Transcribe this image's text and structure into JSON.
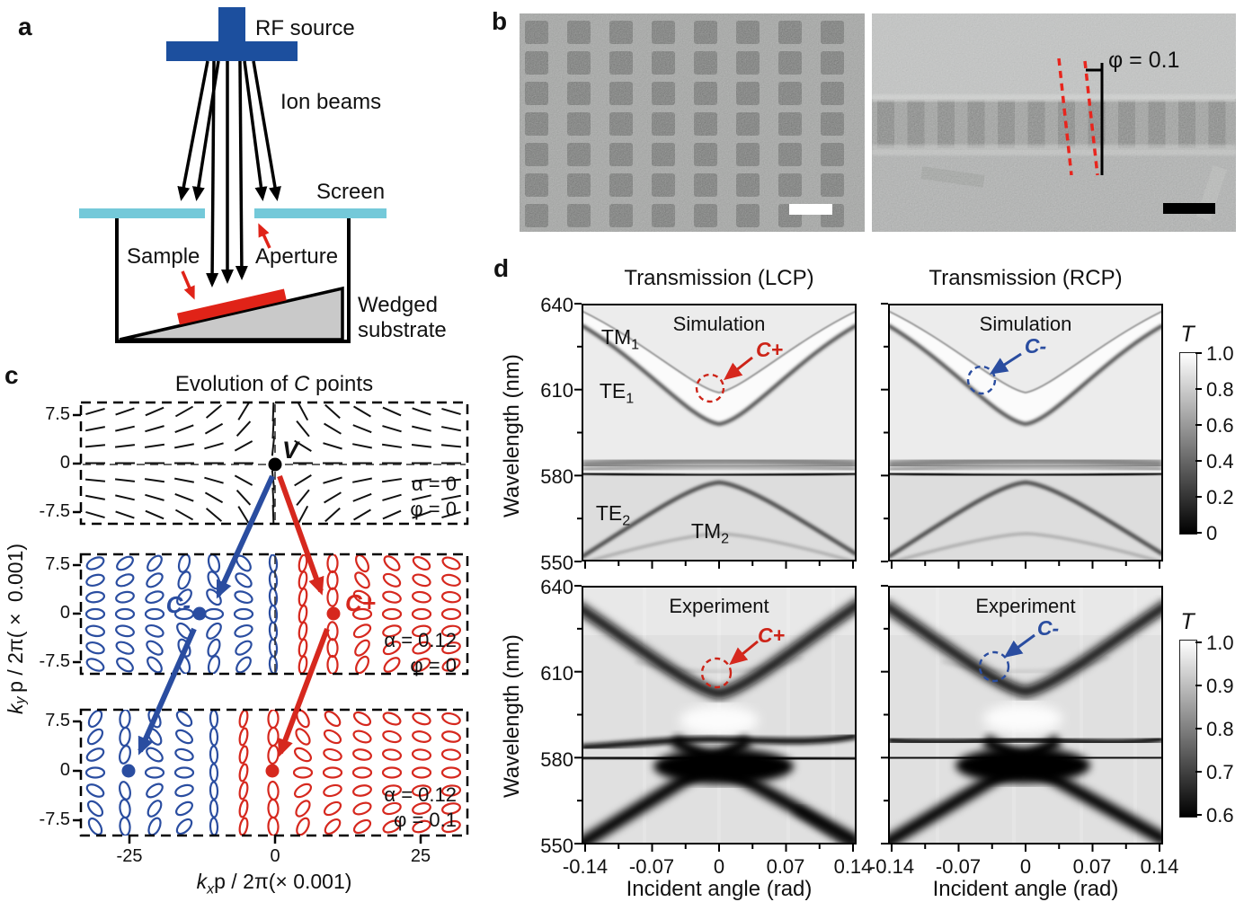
{
  "panel_a": {
    "label": "a",
    "rf_source": "RF source",
    "ion_beams": "Ion beams",
    "screen": "Screen",
    "sample": "Sample",
    "aperture": "Aperture",
    "wedged_1": "Wedged",
    "wedged_2": "substrate",
    "colors": {
      "source_blue": "#1c4f9e",
      "screen_cyan": "#74c9d9",
      "sample_red": "#e02318"
    }
  },
  "panel_b": {
    "label": "b",
    "phi_label": "φ = 0.1"
  },
  "panel_c": {
    "label": "c",
    "title": {
      "prefix": "Evolution of ",
      "italic": "C",
      "suffix": " points"
    },
    "xlabel": {
      "k": "k",
      "sub": "x",
      "rest": "p / 2π(× 0.001)"
    },
    "ylabel": {
      "k": "k",
      "sub": "y",
      "rest": "p / 2π(× 0.001)"
    },
    "y_ticks": [
      "7.5",
      "0",
      "-7.5"
    ],
    "x_ticks": [
      "-25",
      "0",
      "25"
    ],
    "subpanels": [
      {
        "alpha": "α = 0",
        "phi": "φ = 0",
        "v_label": "V"
      },
      {
        "alpha": "α = 0.12",
        "phi": "φ = 0",
        "cminus": "C-",
        "cplus": "C+"
      },
      {
        "alpha": "α = 0.12",
        "phi": "φ = 0.1"
      }
    ]
  },
  "panel_d": {
    "label": "d",
    "col_titles": [
      "Transmission (LCP)",
      "Transmission (RCP)"
    ],
    "row_titles": [
      "Simulation",
      "Experiment"
    ],
    "ylabel": "Wavelength (nm)",
    "xlabel": "Incident angle (rad)",
    "y_ticks": [
      "640",
      "610",
      "580",
      "550"
    ],
    "x_ticks": [
      "-0.14",
      "-0.07",
      "0",
      "0.07",
      "0.14"
    ],
    "band_labels": [
      {
        "base": "TM",
        "sub": "1"
      },
      {
        "base": "TE",
        "sub": "1"
      },
      {
        "base": "TE",
        "sub": "2"
      },
      {
        "base": "TM",
        "sub": "2"
      }
    ],
    "annotations": {
      "cplus": "C+",
      "cminus": "C-"
    },
    "colorbar_top": {
      "title": "T",
      "ticks": [
        "1.0",
        "0.8",
        "0.6",
        "0.4",
        "0.2",
        "0"
      ]
    },
    "colorbar_bottom": {
      "title": "T",
      "ticks": [
        "1.0",
        "0.9",
        "0.8",
        "0.7",
        "0.6"
      ]
    }
  },
  "chart_data": [
    {
      "id": "c-point-evolution",
      "type": "scatter",
      "title": "Evolution of C points",
      "xlabel": "kx p / 2π (× 0.001)",
      "ylabel": "ky p / 2π (× 0.001)",
      "x_ticks": [
        -25,
        0,
        25
      ],
      "y_ticks": [
        7.5,
        0,
        -7.5
      ],
      "xlim": [
        -32,
        33
      ],
      "ylim": [
        -9.3,
        9.3
      ],
      "subpanels": [
        {
          "alpha": 0,
          "phi": 0,
          "field": "linear-polarization line field",
          "points": [
            {
              "name": "V",
              "x": 0,
              "y": 0,
              "color": "#000000"
            }
          ]
        },
        {
          "alpha": 0.12,
          "phi": 0,
          "field": "polarization ellipses, LCP blue left / RCP red right",
          "points": [
            {
              "name": "C-",
              "x": -13,
              "y": 0,
              "color": "#2a4da0"
            },
            {
              "name": "C+",
              "x": 10,
              "y": 0,
              "color": "#d6281e"
            }
          ]
        },
        {
          "alpha": 0.12,
          "phi": 0.1,
          "field": "polarization ellipses shifted left",
          "points": [
            {
              "name": "C-",
              "x": -25,
              "y": 0,
              "color": "#2a4da0"
            },
            {
              "name": "C+",
              "x": 0,
              "y": 0,
              "color": "#d6281e"
            }
          ]
        }
      ]
    },
    {
      "id": "transmission-maps",
      "type": "heatmap",
      "columns": [
        "Transmission (LCP)",
        "Transmission (RCP)"
      ],
      "rows": [
        "Simulation",
        "Experiment"
      ],
      "xlabel": "Incident angle (rad)",
      "ylabel": "Wavelength (nm)",
      "x_range": [
        -0.14,
        0.14
      ],
      "y_range": [
        550,
        640
      ],
      "x_ticks": [
        -0.14,
        -0.07,
        0,
        0.07,
        0.14
      ],
      "y_ticks": [
        640,
        610,
        580,
        550
      ],
      "colorbar_top": {
        "label": "T",
        "range": [
          0,
          1.0
        ],
        "ticks": [
          1.0,
          0.8,
          0.6,
          0.4,
          0.2,
          0
        ]
      },
      "colorbar_bottom": {
        "label": "T",
        "range": [
          0.6,
          1.0
        ],
        "ticks": [
          1.0,
          0.9,
          0.8,
          0.7,
          0.6
        ]
      },
      "features": {
        "bands": [
          "TM1 (top)",
          "TE1 (V-shaped, vertex ~595 nm)",
          "flat band ~580 nm",
          "TM2 (inverted V, apex ~577 nm)",
          "TE2 (lower)"
        ],
        "c_points": [
          {
            "name": "C+",
            "column": "LCP",
            "wavelength_nm": 610,
            "angle_rad": 0.0
          },
          {
            "name": "C-",
            "column": "RCP",
            "wavelength_nm": 612,
            "angle_rad": -0.03
          }
        ]
      }
    }
  ]
}
